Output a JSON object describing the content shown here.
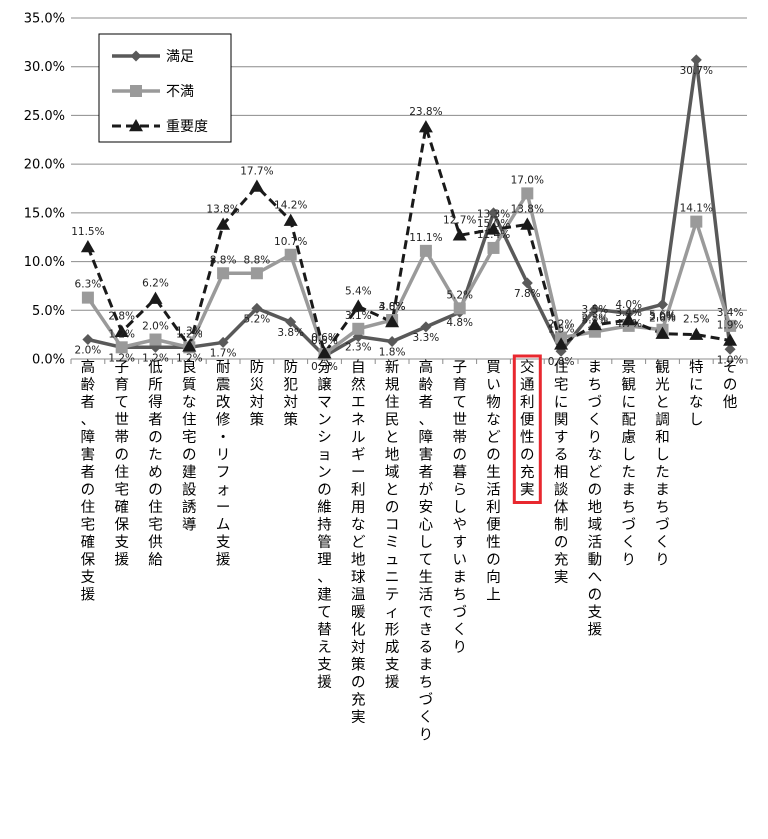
{
  "chart_data": {
    "type": "line",
    "ylim": [
      0,
      35
    ],
    "y_tick_labels": [
      "0.0%",
      "5.0%",
      "10.0%",
      "15.0%",
      "20.0%",
      "25.0%",
      "30.0%",
      "35.0%"
    ],
    "y_ticks": [
      0,
      5,
      10,
      15,
      20,
      25,
      30,
      35
    ],
    "grid": true,
    "legend_position": "top-left",
    "categories": [
      "高齢者、障害者の住宅確保支援",
      "子育て世帯の住宅確保支援",
      "低所得者のための住宅供給",
      "良質な住宅の建設誘導",
      "耐震改修・リフォーム支援",
      "防災対策",
      "防犯対策",
      "分譲マンションの維持管理、建て替え支援",
      "自然エネルギー利用など地球温暖化対策の充実",
      "新規住民と地域とのコミュニティ形成支援",
      "高齢者、障害者が安心して生活できるまちづくり",
      "子育て世帯の暮らしやすいまちづくり",
      "買い物などの生活利便性の向上",
      "交通利便性の充実",
      "住宅に関する相談体制の充実",
      "まちづくりなどの地域活動への支援",
      "景観に配慮したまちづくり",
      "観光と調和したまちづくり",
      "特になし",
      "その他"
    ],
    "highlighted_category_index": 13,
    "highlight_color": "#e8282f",
    "series": [
      {
        "name": "満足",
        "color": "#595959",
        "marker": "diamond",
        "dash": "solid",
        "values": [
          2.0,
          1.2,
          1.2,
          1.2,
          1.7,
          5.2,
          3.8,
          0.3,
          2.3,
          1.8,
          3.3,
          4.8,
          15.0,
          7.8,
          0.8,
          5.1,
          4.7,
          5.6,
          30.7,
          1.0
        ],
        "labels": [
          "2.0%",
          "1.2%",
          "1.2%",
          "1.2%",
          "1.7%",
          "5.2%",
          "3.8%",
          "0.3%",
          "2.3%",
          "1.8%",
          "3.3%",
          "4.8%",
          "15.0%",
          "7.8%",
          "0.8%",
          "5.1%",
          "4.7%",
          "5.6%",
          "30.7%",
          "1.0%"
        ]
      },
      {
        "name": "不満",
        "color": "#9a9a9a",
        "marker": "square",
        "dash": "solid",
        "values": [
          6.3,
          1.2,
          2.0,
          1.2,
          8.8,
          8.8,
          10.7,
          0.5,
          3.1,
          4.0,
          11.1,
          5.2,
          11.4,
          17.0,
          2.2,
          2.8,
          3.4,
          3.0,
          14.1,
          3.4
        ],
        "labels": [
          "6.3%",
          "1.2%",
          "2.0%",
          "1.2%",
          "8.8%",
          "8.8%",
          "10.7%",
          "0.5%",
          "3.1%",
          "4.0%",
          "11.1%",
          "5.2%",
          "11.4%",
          "17.0%",
          "2.2%",
          "2.8%",
          "3.4%",
          "3.0%",
          "14.1%",
          "3.4%"
        ]
      },
      {
        "name": "重要度",
        "color": "#1a1a1a",
        "marker": "triangle",
        "dash": "dashed",
        "values": [
          11.5,
          2.8,
          6.2,
          1.3,
          13.8,
          17.7,
          14.2,
          0.6,
          5.4,
          3.8,
          23.8,
          12.7,
          13.3,
          13.8,
          1.5,
          3.5,
          4.0,
          2.6,
          2.5,
          1.9
        ],
        "labels": [
          "11.5%",
          "2.8%",
          "6.2%",
          "1.3%",
          "13.8%",
          "17.7%",
          "14.2%",
          "0.6%",
          "5.4%",
          "3.8%",
          "23.8%",
          "12.7%",
          "13.3%",
          "13.8%",
          "1.5%",
          "3.5%",
          "4.0%",
          "2.6%",
          "2.5%",
          "1.9%"
        ]
      }
    ]
  }
}
